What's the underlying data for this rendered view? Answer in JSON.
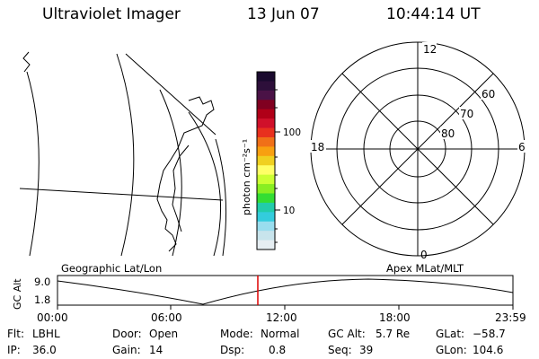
{
  "header": {
    "title": "Ultraviolet Imager",
    "date": "13 Jun 07",
    "time": "10:44:14 UT"
  },
  "map": {
    "label": "Geographic Lat/Lon"
  },
  "colorbar": {
    "unit_label": "photon cm⁻²s⁻¹",
    "tick_labels": [
      "100",
      "10"
    ],
    "colors": [
      "#1a0a2e",
      "#2d0f3a",
      "#4a1246",
      "#800020",
      "#b00018",
      "#d0102a",
      "#e8301e",
      "#f07018",
      "#f8a010",
      "#f0d020",
      "#ffff66",
      "#ccff33",
      "#88ee22",
      "#33dd33",
      "#22ccaa",
      "#33ccdd",
      "#99ddee",
      "#c8e4ec",
      "#e6eef2"
    ]
  },
  "polar": {
    "label": "Apex MLat/MLT",
    "lat_labels": [
      "60",
      "70",
      "80"
    ],
    "mlt_labels": {
      "top": "12",
      "bottom": "0",
      "left": "18",
      "right": "6"
    }
  },
  "altitude": {
    "axis_label": "GC Alt",
    "y_ticks": [
      "9.0",
      "1.8"
    ],
    "x_ticks": [
      "00:00",
      "06:00",
      "12:00",
      "18:00",
      "23:59"
    ],
    "marker_color": "#dd0000"
  },
  "status": {
    "flt_label": "Flt:",
    "flt_value": "LBHL",
    "ip_label": "IP:",
    "ip_value": "36.0",
    "door_label": "Door:",
    "door_value": "Open",
    "gain_label": "Gain:",
    "gain_value": "14",
    "mode_label": "Mode:",
    "mode_value": "Normal",
    "dsp_label": "Dsp:",
    "dsp_value": "0.8",
    "gcalt_label": "GC Alt:",
    "gcalt_value": "5.7 Re",
    "seq_label": "Seq:",
    "seq_value": "39",
    "glat_label": "GLat:",
    "glat_value": "−58.7",
    "glon_label": "GLon:",
    "glon_value": "104.6"
  }
}
